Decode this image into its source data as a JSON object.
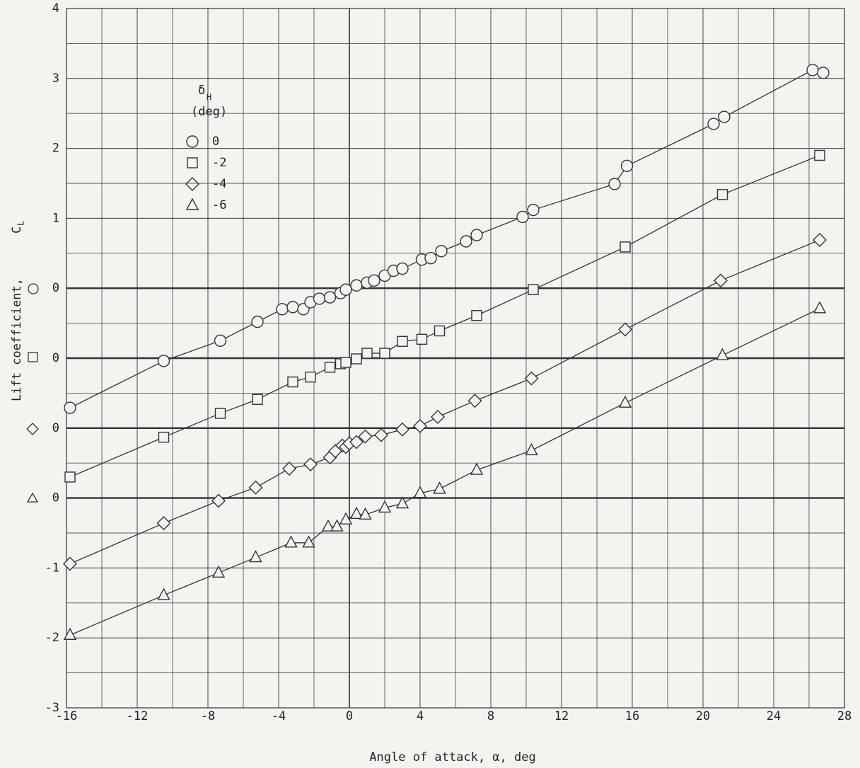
{
  "chart_data": {
    "type": "scatter",
    "xlabel": "Angle of attack,  α, deg",
    "ylabel": "Lift coefficient,",
    "ylabel_symbol": "C",
    "ylabel_subscript": "L",
    "legend_title": {
      "symbol": "δ",
      "subscript": "H",
      "unit": "(deg)"
    },
    "legend": "upper left",
    "grid": true,
    "xlim": [
      -16,
      28
    ],
    "ylim": [
      -6,
      4
    ],
    "xticks": [
      -16,
      -12,
      -8,
      -4,
      0,
      4,
      8,
      12,
      16,
      20,
      24,
      28
    ],
    "yticks": [
      4,
      3,
      2,
      1,
      0,
      {
        "value": -1,
        "label": "0"
      },
      {
        "value": -2,
        "label": "0"
      },
      {
        "value": -3,
        "label": "0"
      },
      {
        "value": -4,
        "label": "-1"
      },
      {
        "value": -5,
        "label": "-2"
      },
      {
        "value": -6,
        "label": "-3"
      }
    ],
    "series": [
      {
        "name": "0",
        "marker": "circle",
        "color": "#333333",
        "x": [
          -15.8,
          -10.5,
          -7.3,
          -5.2,
          -3.8,
          -3.2,
          -2.6,
          -2.2,
          -1.7,
          -1.1,
          -0.5,
          -0.2,
          0.4,
          1.0,
          1.4,
          2.0,
          2.5,
          3.0,
          4.1,
          4.6,
          5.2,
          6.6,
          7.2,
          9.8,
          10.4,
          15.0,
          15.7,
          20.6,
          21.2,
          26.2,
          26.8
        ],
        "values": [
          -1.71,
          -1.04,
          -0.75,
          -0.48,
          -0.3,
          -0.27,
          -0.3,
          -0.2,
          -0.15,
          -0.13,
          -0.07,
          -0.02,
          0.04,
          0.08,
          0.11,
          0.18,
          0.25,
          0.28,
          0.41,
          0.43,
          0.53,
          0.67,
          0.76,
          1.02,
          1.12,
          1.49,
          1.75,
          2.35,
          2.45,
          3.12,
          3.08
        ]
      },
      {
        "name": "-2",
        "marker": "square",
        "color": "#333333",
        "x": [
          -15.8,
          -10.5,
          -7.3,
          -5.2,
          -3.2,
          -2.2,
          -1.1,
          -0.5,
          -0.2,
          0.4,
          1.0,
          2.0,
          3.0,
          4.1,
          5.1,
          7.2,
          10.4,
          15.6,
          21.1,
          26.6
        ],
        "values": [
          -2.7,
          -2.13,
          -1.79,
          -1.59,
          -1.34,
          -1.27,
          -1.13,
          -1.08,
          -1.06,
          -1.01,
          -0.93,
          -0.93,
          -0.76,
          -0.73,
          -0.61,
          -0.39,
          -0.02,
          0.59,
          1.34,
          1.9
        ]
      },
      {
        "name": "-4",
        "marker": "diamond",
        "color": "#333333",
        "x": [
          -15.8,
          -10.5,
          -7.4,
          -5.3,
          -3.4,
          -2.2,
          -1.1,
          -0.8,
          -0.4,
          -0.2,
          0.0,
          0.4,
          0.9,
          1.8,
          3.0,
          4.0,
          5.0,
          7.1,
          10.3,
          15.6,
          21.0,
          26.6
        ],
        "values": [
          -3.94,
          -3.36,
          -3.04,
          -2.85,
          -2.58,
          -2.52,
          -2.42,
          -2.33,
          -2.25,
          -2.27,
          -2.22,
          -2.2,
          -2.12,
          -2.1,
          -2.02,
          -1.97,
          -1.84,
          -1.61,
          -1.29,
          -0.59,
          0.11,
          0.69
        ]
      },
      {
        "name": "-6",
        "marker": "triangle",
        "color": "#333333",
        "x": [
          -15.8,
          -10.5,
          -7.4,
          -5.3,
          -3.3,
          -2.3,
          -1.2,
          -0.7,
          -0.2,
          0.4,
          0.9,
          2.0,
          3.0,
          4.0,
          5.1,
          7.2,
          10.3,
          15.6,
          21.1,
          26.6
        ],
        "values": [
          -4.96,
          -4.39,
          -4.07,
          -3.85,
          -3.64,
          -3.64,
          -3.41,
          -3.41,
          -3.31,
          -3.23,
          -3.24,
          -3.14,
          -3.08,
          -2.93,
          -2.87,
          -2.6,
          -2.32,
          -1.64,
          -0.96,
          -0.29
        ]
      }
    ]
  }
}
